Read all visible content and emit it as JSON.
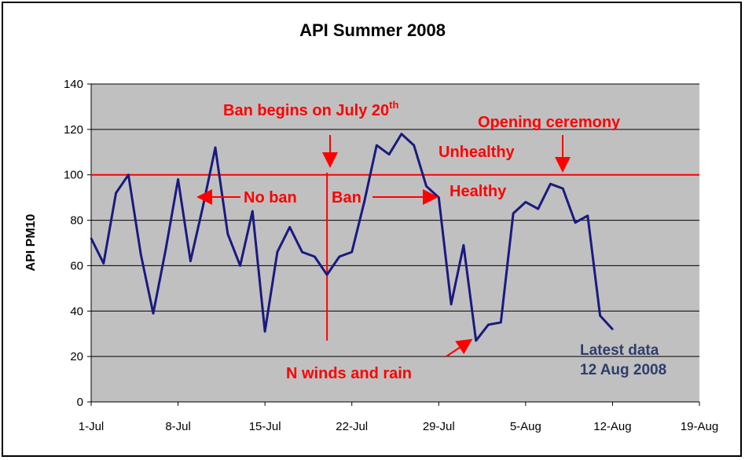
{
  "chart_data": {
    "type": "line",
    "title": "API Summer 2008",
    "ylabel": "API PM10",
    "xlabel": "",
    "ylim": [
      0,
      140
    ],
    "yticks": [
      0,
      20,
      40,
      60,
      80,
      100,
      120,
      140
    ],
    "x_tick_labels": [
      "1-Jul",
      "8-Jul",
      "15-Jul",
      "22-Jul",
      "29-Jul",
      "5-Aug",
      "12-Aug",
      "19-Aug"
    ],
    "x_tick_days": [
      0,
      7,
      14,
      21,
      28,
      35,
      42,
      49
    ],
    "grid": true,
    "plot_background": "#c0c0c0",
    "series": [
      {
        "color": "#1a1a80",
        "x_days": [
          0,
          1,
          2,
          3,
          4,
          5,
          6,
          7,
          8,
          9,
          10,
          11,
          12,
          13,
          14,
          15,
          16,
          17,
          18,
          19,
          20,
          21,
          22,
          23,
          24,
          25,
          26,
          27,
          28,
          29,
          30,
          31,
          32,
          33,
          34,
          35,
          36,
          37,
          38,
          39,
          40,
          41,
          42
        ],
        "values": [
          72,
          61,
          92,
          100,
          65,
          39,
          67,
          98,
          62,
          86,
          112,
          74,
          60,
          84,
          31,
          66,
          77,
          66,
          64,
          56,
          64,
          66,
          88,
          113,
          109,
          118,
          113,
          95,
          90,
          43,
          69,
          27,
          34,
          35,
          83,
          88,
          85,
          96,
          94,
          79,
          82,
          38,
          32
        ]
      }
    ],
    "threshold": {
      "value": 100,
      "color": "#ff0000"
    },
    "ban_start_day": 19,
    "annotations": {
      "ban_begins": "Ban begins on July 20",
      "ban_begins_sup": "th",
      "opening": "Opening ceremony",
      "unhealthy": "Unhealthy",
      "healthy": "Healthy",
      "no_ban": "No ban",
      "ban": "Ban",
      "winds": "N winds and rain",
      "latest1": "Latest data",
      "latest2": "12 Aug 2008"
    }
  }
}
